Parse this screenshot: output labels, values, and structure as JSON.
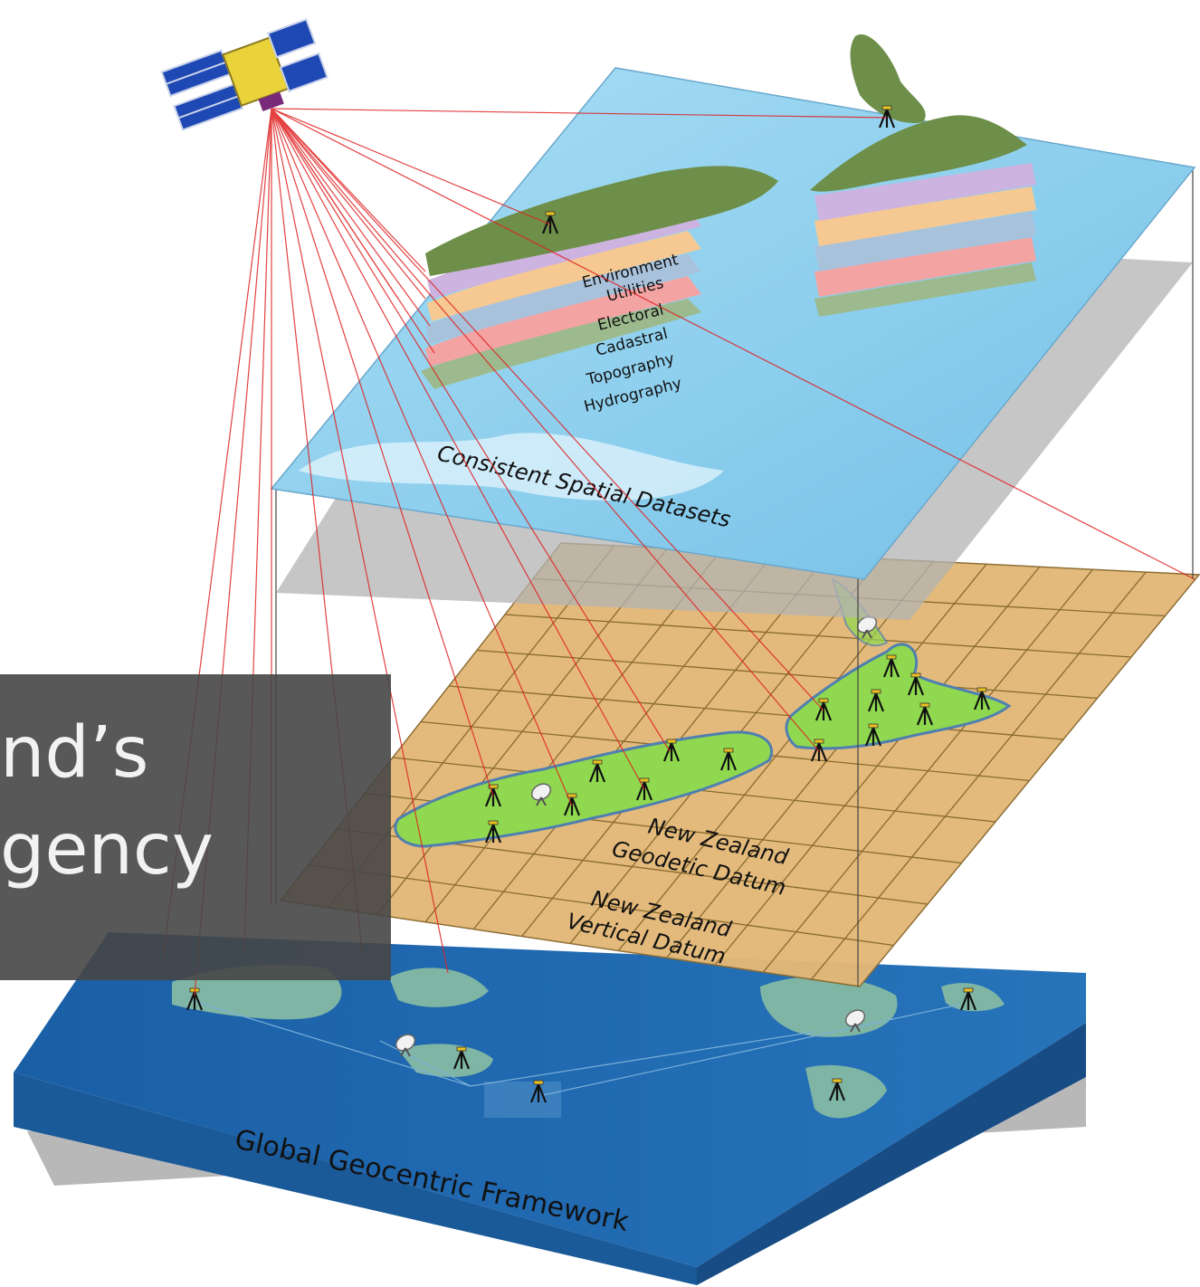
{
  "layers": {
    "top": {
      "title": "Consistent Spatial Datasets",
      "datasets": [
        "Environment",
        "Utilities",
        "Electoral",
        "Cadastral",
        "Topography",
        "Hydrography"
      ]
    },
    "middle": {
      "datum_horizontal": [
        "New Zealand",
        "Geodetic Datum"
      ],
      "datum_vertical": [
        "New Zealand",
        "Vertical Datum"
      ]
    },
    "bottom": {
      "title": "Global Geocentric Framework"
    }
  },
  "overlay": {
    "line1": "nd’s",
    "line2": "gency"
  },
  "colors": {
    "sea_top": "#8fd0ee",
    "grid_plane": "#e3b877",
    "globe_slab": "#1f68b0",
    "land_green": "#8fd84f",
    "satellite_ray": "#e02020",
    "overlay_bg": "#464646"
  },
  "icons": [
    "satellite-icon",
    "survey-tripod-icon",
    "radio-dish-icon"
  ]
}
